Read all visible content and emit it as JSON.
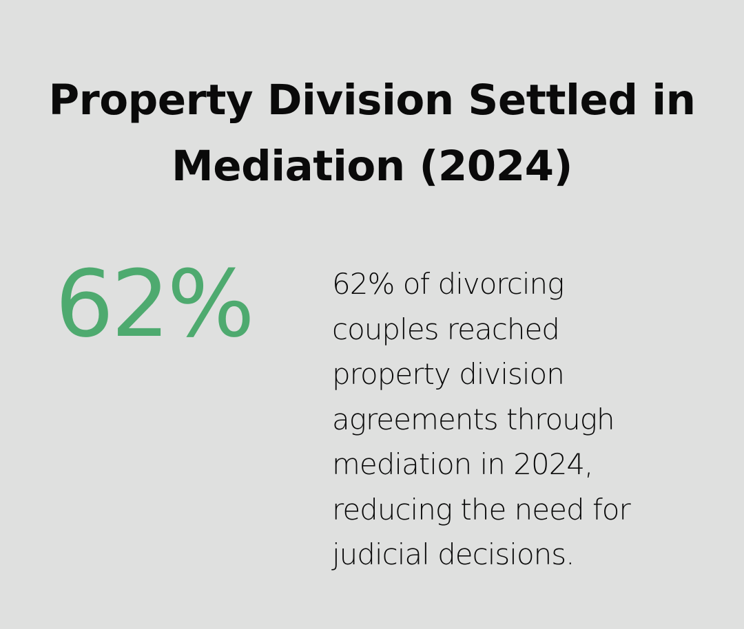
{
  "title": {
    "line1": "Property Division Settled in",
    "line2": "Mediation (2024)"
  },
  "stat": {
    "value": "62%",
    "color": "#4eaa6f"
  },
  "description": {
    "lines": [
      "62% of divorcing",
      "couples reached",
      "property division",
      "agreements through",
      "mediation in 2024,",
      "reducing the need for",
      "judicial decisions."
    ]
  },
  "colors": {
    "background": "#dfe0df",
    "text": "#0a0a0a",
    "accent": "#4eaa6f"
  }
}
